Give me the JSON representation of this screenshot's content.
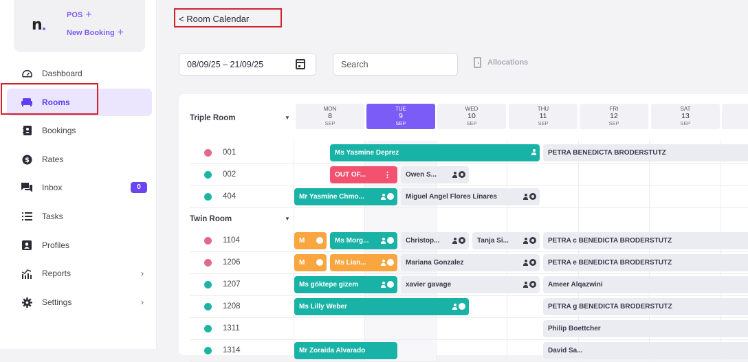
{
  "sidebar": {
    "logo": "n",
    "quick_actions": [
      {
        "label": "POS",
        "icon": "plus-icon"
      },
      {
        "label": "New Booking",
        "icon": "plus-icon"
      }
    ],
    "items": [
      {
        "label": "Dashboard",
        "icon": "gauge-icon"
      },
      {
        "label": "Rooms",
        "icon": "bed-icon",
        "active": true
      },
      {
        "label": "Bookings",
        "icon": "address-book-icon"
      },
      {
        "label": "Rates",
        "icon": "dollar-coin-icon"
      },
      {
        "label": "Inbox",
        "icon": "chat-icon",
        "badge": "0"
      },
      {
        "label": "Tasks",
        "icon": "list-icon"
      },
      {
        "label": "Profiles",
        "icon": "id-card-icon"
      },
      {
        "label": "Reports",
        "icon": "chart-icon",
        "chevron": true
      },
      {
        "label": "Settings",
        "icon": "gear-icon",
        "chevron": true
      }
    ]
  },
  "header": {
    "back_label": "< Room Calendar",
    "date_range": "08/09/25 – 21/09/25",
    "search_placeholder": "Search",
    "allocations_label": "Allocations"
  },
  "calendar": {
    "days": [
      {
        "dow": "MON",
        "day": "8",
        "month": "SEP"
      },
      {
        "dow": "TUE",
        "day": "9",
        "month": "SEP",
        "today": true
      },
      {
        "dow": "WED",
        "day": "10",
        "month": "SEP"
      },
      {
        "dow": "THU",
        "day": "11",
        "month": "SEP"
      },
      {
        "dow": "FRI",
        "day": "12",
        "month": "SEP"
      },
      {
        "dow": "SAT",
        "day": "13",
        "month": "SEP"
      }
    ],
    "groups": [
      {
        "name": "Triple Room"
      },
      {
        "name": "Twin Room"
      }
    ],
    "rooms": [
      {
        "number": "001",
        "status": "dirty"
      },
      {
        "number": "002",
        "status": "clean"
      },
      {
        "number": "404",
        "status": "clean"
      },
      {
        "number": "1104",
        "status": "dirty"
      },
      {
        "number": "1206",
        "status": "dirty"
      },
      {
        "number": "1207",
        "status": "clean"
      },
      {
        "number": "1208",
        "status": "clean"
      },
      {
        "number": "1311",
        "status": "clean"
      },
      {
        "number": "1314",
        "status": "clean"
      }
    ],
    "bookings": [
      {
        "label": "Ms Yasmine Deprez"
      },
      {
        "label": "PETRA BENEDICTA BRODERSTUTZ"
      },
      {
        "label": "OUT OF..."
      },
      {
        "label": "Owen S..."
      },
      {
        "label": "Mr Yasmine Chmo..."
      },
      {
        "label": "Miguel Angel Flores Linares"
      },
      {
        "label": "M"
      },
      {
        "label": "Ms Morg..."
      },
      {
        "label": "Christop..."
      },
      {
        "label": "Tanja Si..."
      },
      {
        "label": "PETRA c BENEDICTA BRODERSTUTZ"
      },
      {
        "label": "M"
      },
      {
        "label": "Ms Lian..."
      },
      {
        "label": "Mariana Gonzalez"
      },
      {
        "label": "PETRA e BENEDICTA BRODERSTUTZ"
      },
      {
        "label": "Ms göktepe gizem"
      },
      {
        "label": "xavier gavage"
      },
      {
        "label": "Ameer Alqazwini"
      },
      {
        "label": "Ms Lilly Weber"
      },
      {
        "label": "PETRA g BENEDICTA BRODERSTUTZ"
      },
      {
        "label": "Philip Boettcher"
      },
      {
        "label": "Mr Zoraida Alvarado"
      },
      {
        "label": "David Sa..."
      }
    ]
  },
  "colors": {
    "accent": "#7b5cf6",
    "booking_teal": "#18b3a6",
    "booking_orange": "#f9a640",
    "booking_red": "#f25270",
    "booking_gray": "#ebebf2",
    "status_dirty": "#e06a87",
    "status_clean": "#1fb3a5",
    "highlight_box": "#d0222b"
  }
}
